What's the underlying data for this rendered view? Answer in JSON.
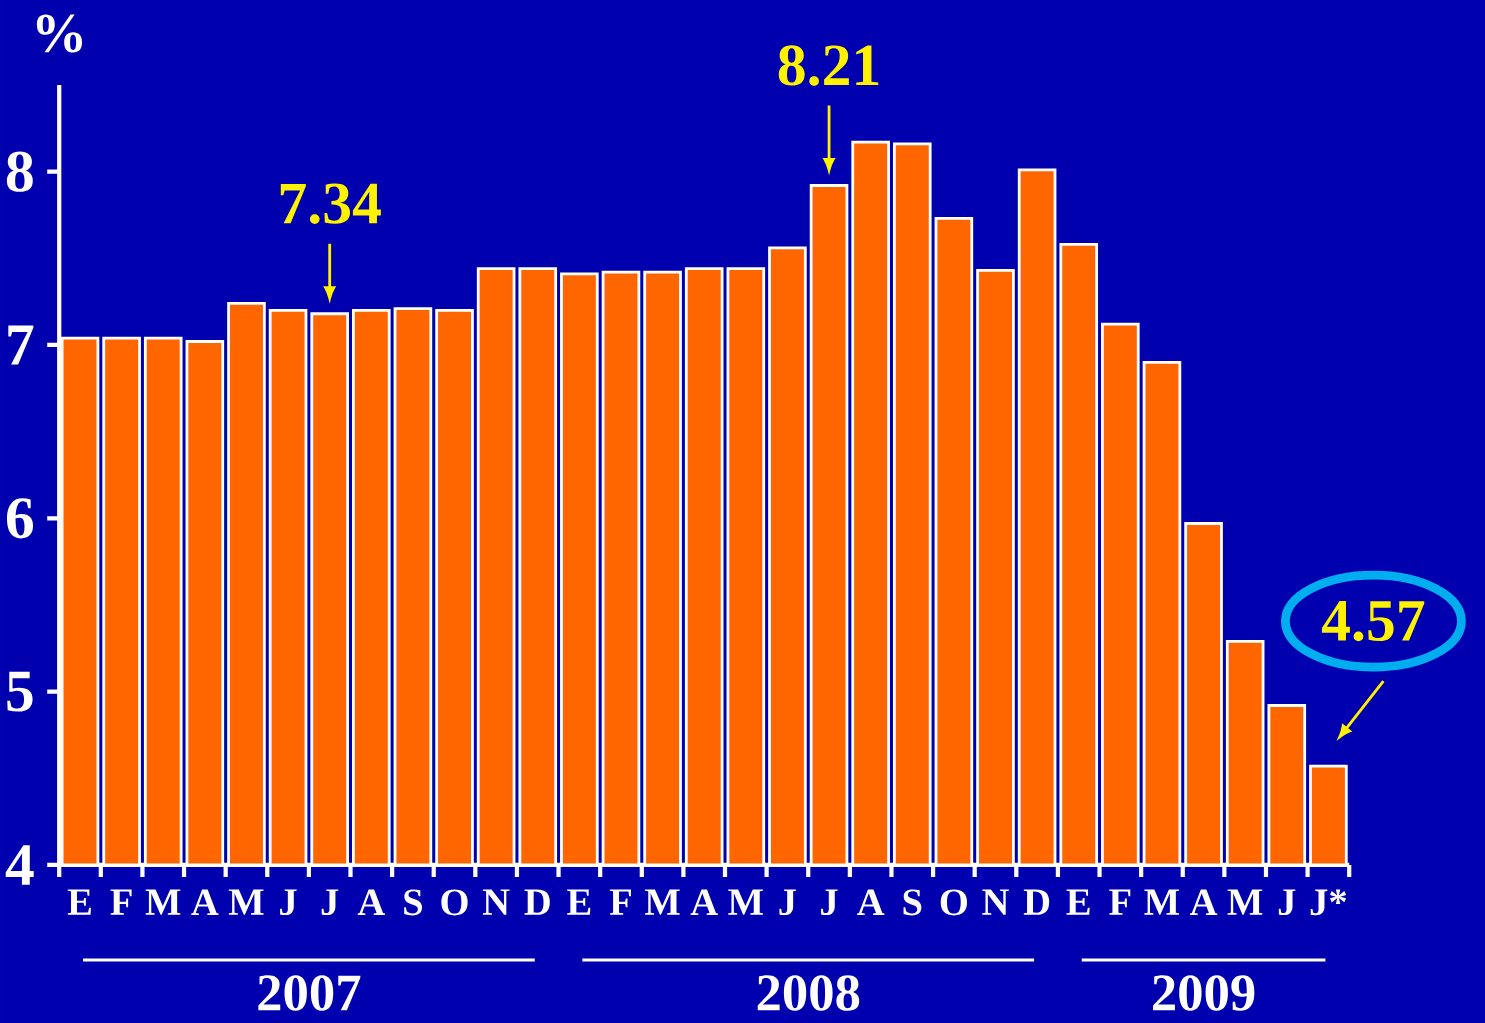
{
  "chart_data": {
    "type": "bar",
    "ylabel": "%",
    "categories": [
      "E",
      "F",
      "M",
      "A",
      "M",
      "J",
      "J",
      "A",
      "S",
      "O",
      "N",
      "D",
      "E",
      "F",
      "M",
      "A",
      "M",
      "J",
      "J",
      "A",
      "S",
      "O",
      "N",
      "D",
      "E",
      "F",
      "M",
      "A",
      "M",
      "J",
      "J*"
    ],
    "values": [
      7.04,
      7.04,
      7.04,
      7.02,
      7.24,
      7.2,
      7.18,
      7.2,
      7.21,
      7.2,
      7.44,
      7.44,
      7.41,
      7.42,
      7.42,
      7.44,
      7.44,
      7.56,
      7.92,
      8.17,
      8.16,
      7.73,
      7.43,
      8.01,
      7.58,
      7.12,
      6.9,
      5.97,
      5.29,
      4.92,
      4.57
    ],
    "color": "#ff6600",
    "ylim": [
      4,
      8.5
    ],
    "yticks": [
      4,
      5,
      6,
      7,
      8
    ],
    "annotations": [
      "7.34",
      "8.21",
      "4.57",
      "2007",
      "2008",
      "2009"
    ]
  }
}
